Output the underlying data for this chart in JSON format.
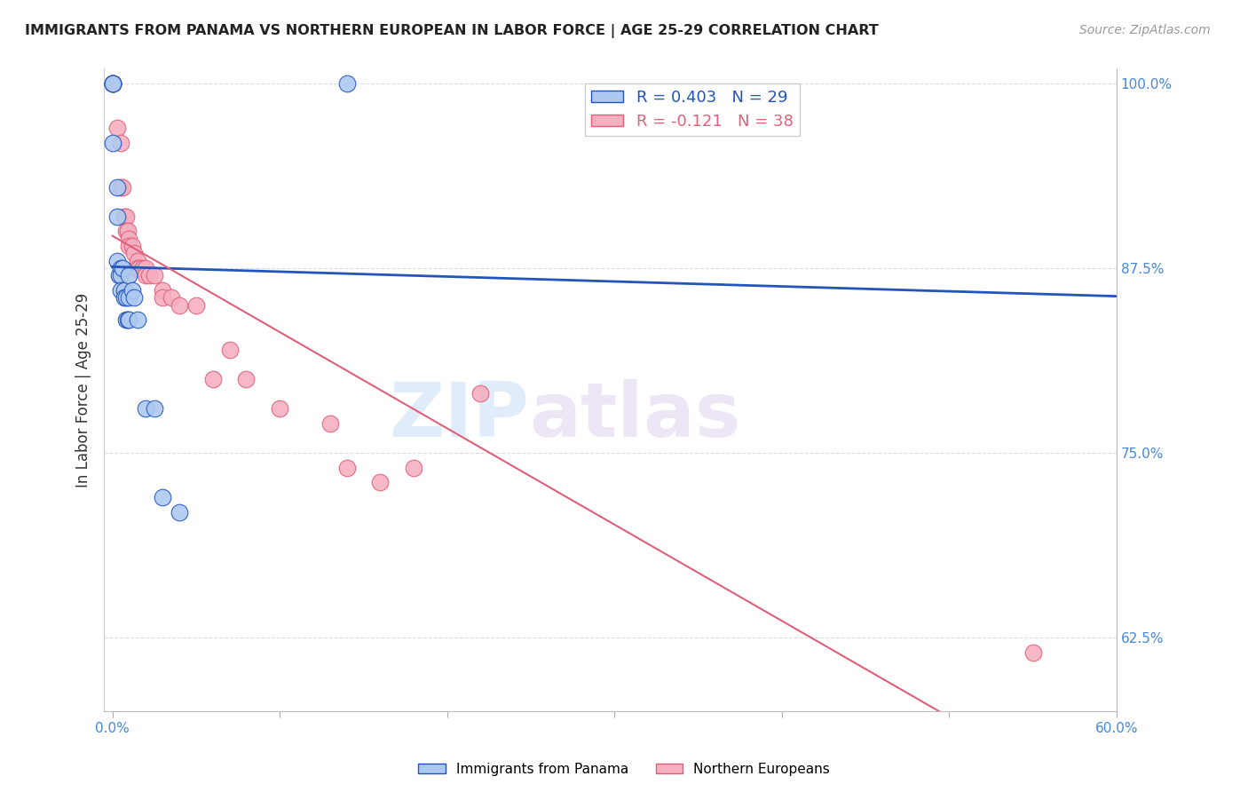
{
  "title": "IMMIGRANTS FROM PANAMA VS NORTHERN EUROPEAN IN LABOR FORCE | AGE 25-29 CORRELATION CHART",
  "source": "Source: ZipAtlas.com",
  "ylabel": "In Labor Force | Age 25-29",
  "xlim": [
    -0.005,
    0.6
  ],
  "ylim": [
    0.575,
    1.01
  ],
  "panama_r": 0.403,
  "panama_n": 29,
  "northern_r": -0.121,
  "northern_n": 38,
  "panama_color": "#aec9f0",
  "northern_color": "#f5afc0",
  "panama_line_color": "#2255bb",
  "northern_line_color": "#e0607a",
  "panama_x": [
    0.0,
    0.0,
    0.0,
    0.0,
    0.0,
    0.003,
    0.003,
    0.003,
    0.004,
    0.005,
    0.005,
    0.005,
    0.006,
    0.007,
    0.007,
    0.008,
    0.008,
    0.009,
    0.01,
    0.01,
    0.01,
    0.012,
    0.013,
    0.015,
    0.02,
    0.025,
    0.03,
    0.04,
    0.14
  ],
  "panama_y": [
    1.0,
    1.0,
    1.0,
    1.0,
    0.96,
    0.93,
    0.91,
    0.88,
    0.87,
    0.875,
    0.87,
    0.86,
    0.875,
    0.86,
    0.855,
    0.855,
    0.84,
    0.84,
    0.87,
    0.855,
    0.84,
    0.86,
    0.855,
    0.84,
    0.78,
    0.78,
    0.72,
    0.71,
    1.0
  ],
  "northern_x": [
    0.0,
    0.0,
    0.003,
    0.005,
    0.005,
    0.006,
    0.007,
    0.008,
    0.008,
    0.009,
    0.01,
    0.01,
    0.012,
    0.013,
    0.014,
    0.015,
    0.015,
    0.016,
    0.018,
    0.02,
    0.02,
    0.022,
    0.025,
    0.03,
    0.03,
    0.035,
    0.04,
    0.05,
    0.06,
    0.07,
    0.08,
    0.1,
    0.13,
    0.14,
    0.16,
    0.18,
    0.22,
    0.55
  ],
  "northern_y": [
    1.0,
    1.0,
    0.97,
    0.96,
    0.93,
    0.93,
    0.91,
    0.91,
    0.9,
    0.9,
    0.895,
    0.89,
    0.89,
    0.885,
    0.875,
    0.88,
    0.875,
    0.875,
    0.875,
    0.875,
    0.87,
    0.87,
    0.87,
    0.86,
    0.855,
    0.855,
    0.85,
    0.85,
    0.8,
    0.82,
    0.8,
    0.78,
    0.77,
    0.74,
    0.73,
    0.74,
    0.79,
    0.615
  ],
  "watermark_zip": "ZIP",
  "watermark_atlas": "atlas",
  "grid_color": "#dddddd",
  "y_tick_vals": [
    0.625,
    0.75,
    0.875,
    1.0
  ],
  "y_tick_labels": [
    "62.5%",
    "75.0%",
    "87.5%",
    "100.0%"
  ]
}
